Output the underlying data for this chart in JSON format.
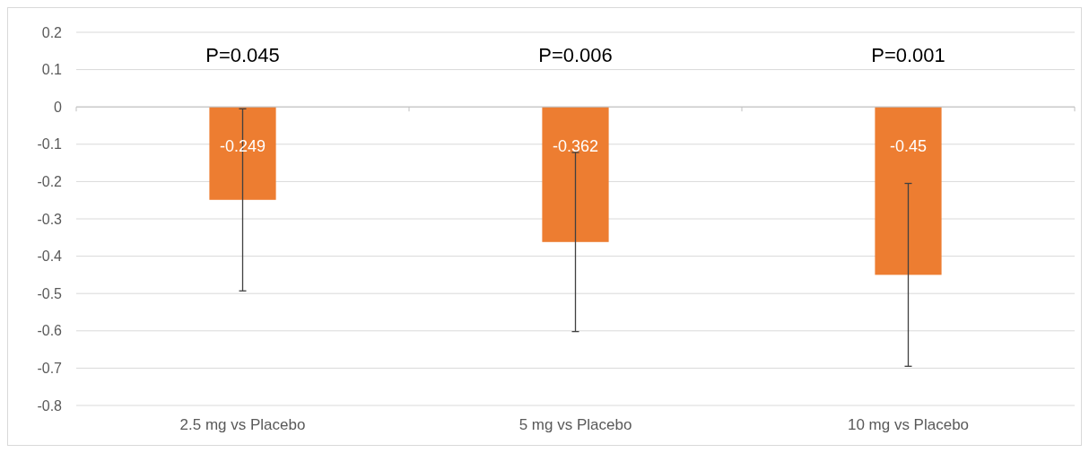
{
  "chart_data": {
    "type": "bar",
    "categories": [
      "2.5 mg vs Placebo",
      "5 mg vs Placebo",
      "10 mg vs Placebo"
    ],
    "values": [
      -0.249,
      -0.362,
      -0.45
    ],
    "color": "#ed7d31",
    "errors": [
      0.244,
      0.24,
      0.245
    ],
    "data_labels": true,
    "ylim": [
      -0.8,
      0.2
    ],
    "yticks": [
      -0.8,
      -0.7,
      -0.6,
      -0.5,
      -0.4,
      -0.3,
      -0.2,
      -0.1,
      0,
      0.1,
      0.2
    ],
    "grid": "y",
    "annotations": [
      "P=0.045",
      "P=0.006",
      "P=0.001"
    ]
  }
}
